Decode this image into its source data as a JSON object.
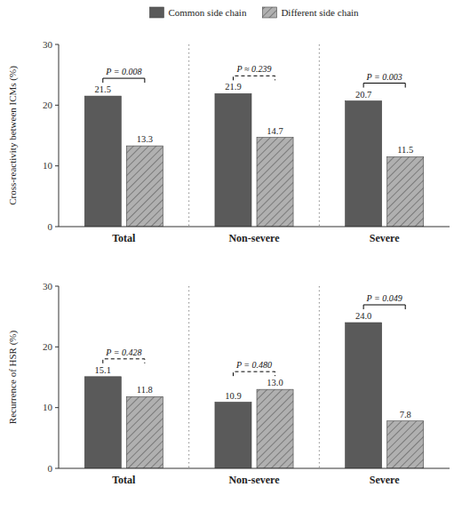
{
  "chart_data": [
    {
      "type": "bar",
      "ylabel": "Cross-reactivity between ICMs (%)",
      "categories": [
        "Total",
        "Non-severe",
        "Severe"
      ],
      "series": [
        {
          "name": "Common side chain",
          "color": "#5a5a5a",
          "values": [
            21.5,
            21.9,
            20.7
          ]
        },
        {
          "name": "Different side chain",
          "color": "#b0b0b0",
          "values": [
            13.3,
            14.7,
            11.5
          ]
        }
      ],
      "annotations": [
        {
          "text": "P = 0.008",
          "line_style": "solid"
        },
        {
          "text": "P ≈ 0.239",
          "line_style": "dashed"
        },
        {
          "text": "P = 0.003",
          "line_style": "solid"
        }
      ],
      "ylim": [
        0,
        30
      ],
      "yticks": [
        0,
        10,
        20,
        30
      ],
      "grid": false,
      "data_labels": true,
      "legend": "top"
    },
    {
      "type": "bar",
      "ylabel": "Recurrence of HSR (%)",
      "categories": [
        "Total",
        "Non-severe",
        "Severe"
      ],
      "series": [
        {
          "name": "Common side chain",
          "color": "#5a5a5a",
          "values": [
            15.1,
            10.9,
            24.0
          ],
          "value_labels": [
            "15.1",
            "10.9",
            "24.0"
          ]
        },
        {
          "name": "Different side chain",
          "color": "#b0b0b0",
          "values": [
            11.8,
            13.0,
            7.8
          ],
          "value_labels": [
            "11.8",
            "13.0",
            "7.8"
          ]
        }
      ],
      "annotations": [
        {
          "text": "P = 0.428",
          "line_style": "dashed"
        },
        {
          "text": "P = 0.480",
          "line_style": "dashed"
        },
        {
          "text": "P = 0.049",
          "line_style": "solid"
        }
      ],
      "ylim": [
        0,
        30
      ],
      "yticks": [
        0,
        10,
        20,
        30
      ],
      "grid": false,
      "data_labels": true
    }
  ]
}
